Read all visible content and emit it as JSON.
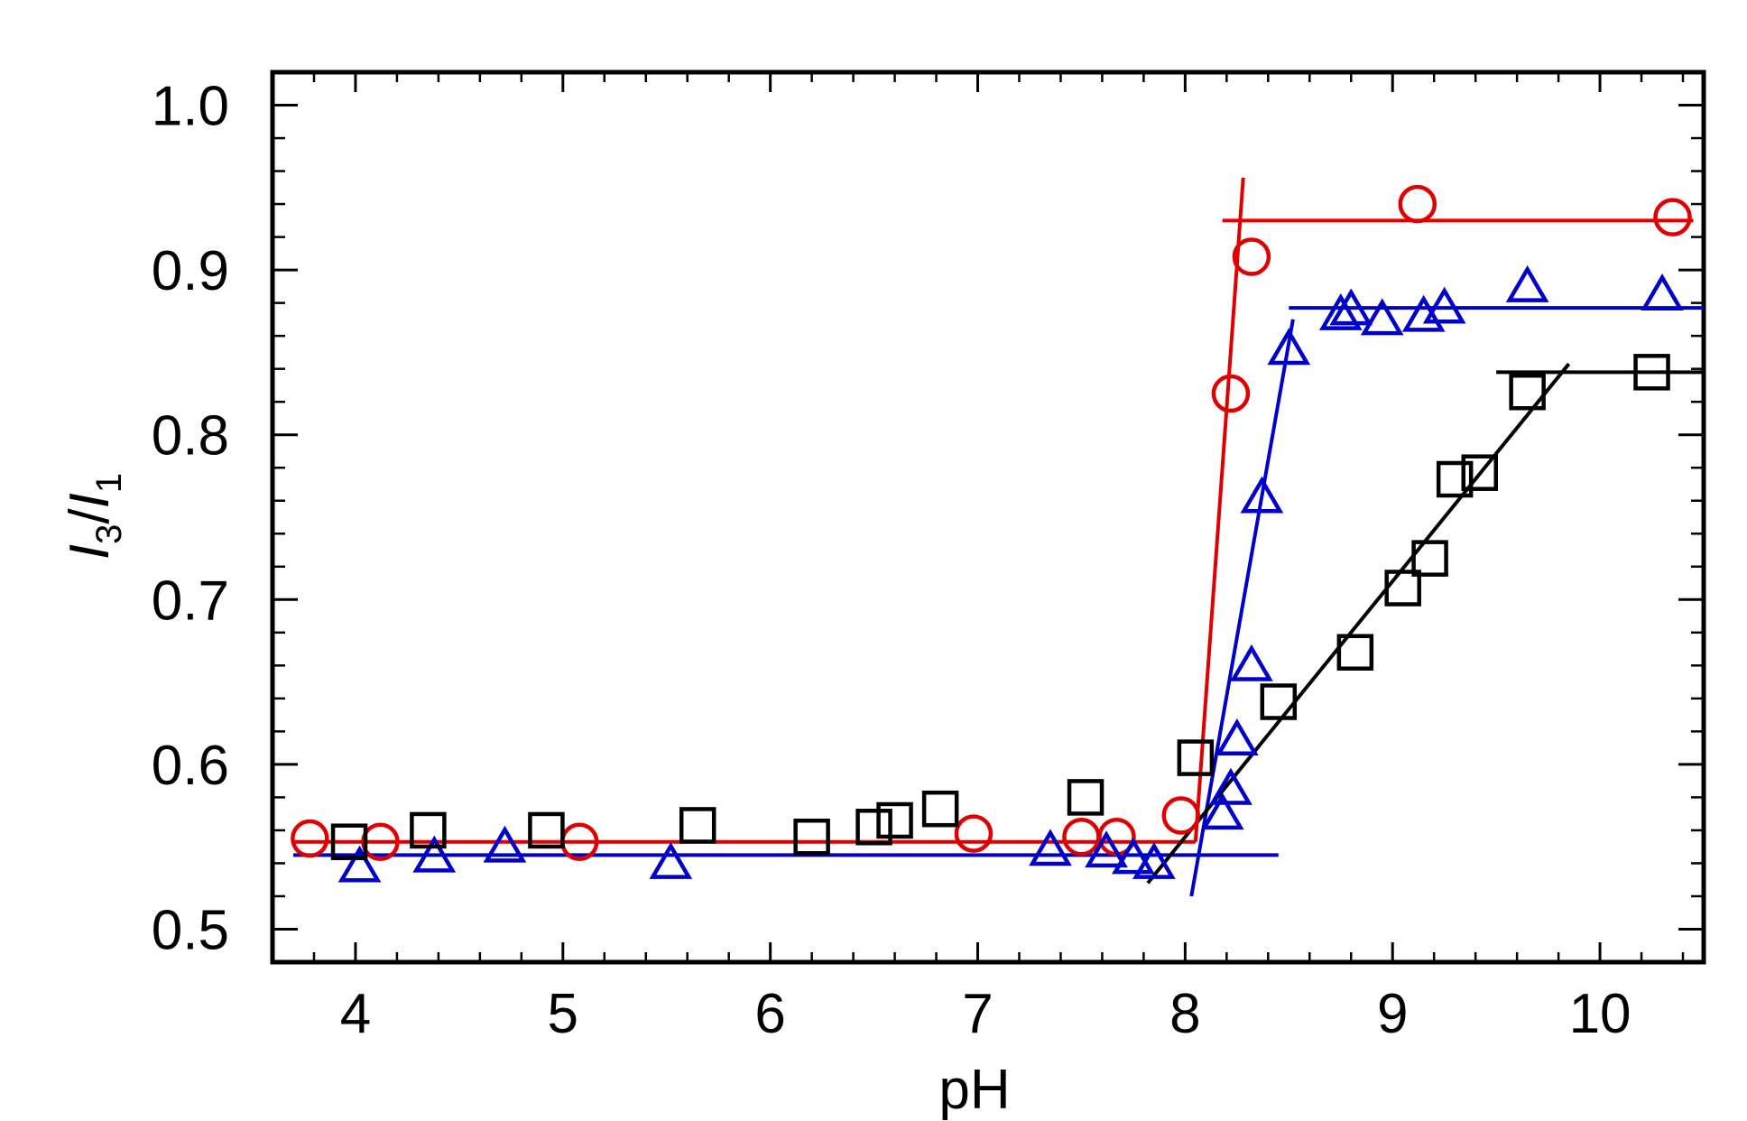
{
  "chart_data": {
    "type": "scatter",
    "title": "",
    "xlabel": "pH",
    "ylabel": {
      "part1": "I",
      "sub1": "3",
      "slash": "/",
      "part2": "I",
      "sub2": "1"
    },
    "xlim": [
      3.6,
      10.5
    ],
    "ylim": [
      0.48,
      1.02
    ],
    "xticks": [
      4,
      5,
      6,
      7,
      8,
      9,
      10
    ],
    "xtick_labels": [
      "4",
      "5",
      "6",
      "7",
      "8",
      "9",
      "10"
    ],
    "yticks": [
      0.5,
      0.6,
      0.7,
      0.8,
      0.9,
      1.0
    ],
    "ytick_labels": [
      "0.5",
      "0.6",
      "0.7",
      "0.8",
      "0.9",
      "1.0"
    ],
    "grid": false,
    "legend": "none",
    "series": [
      {
        "marker": "circle",
        "color": "#e00000",
        "points": [
          [
            3.78,
            0.555
          ],
          [
            4.12,
            0.553
          ],
          [
            5.08,
            0.553
          ],
          [
            6.98,
            0.558
          ],
          [
            7.5,
            0.556
          ],
          [
            7.67,
            0.556
          ],
          [
            7.98,
            0.569
          ],
          [
            8.22,
            0.825
          ],
          [
            8.32,
            0.908
          ],
          [
            9.12,
            0.94
          ],
          [
            10.35,
            0.932
          ]
        ],
        "fit_lines": [
          [
            [
              3.7,
              0.553
            ],
            [
              8.05,
              0.553
            ]
          ],
          [
            [
              8.05,
              0.553
            ],
            [
              8.28,
              0.956
            ]
          ],
          [
            [
              8.18,
              0.93
            ],
            [
              10.45,
              0.93
            ]
          ]
        ]
      },
      {
        "marker": "triangle",
        "color": "#0000cc",
        "points": [
          [
            4.02,
            0.538
          ],
          [
            4.38,
            0.544
          ],
          [
            4.72,
            0.55
          ],
          [
            5.52,
            0.54
          ],
          [
            7.35,
            0.548
          ],
          [
            7.62,
            0.547
          ],
          [
            7.75,
            0.543
          ],
          [
            7.85,
            0.54
          ],
          [
            8.18,
            0.57
          ],
          [
            8.22,
            0.585
          ],
          [
            8.25,
            0.615
          ],
          [
            8.32,
            0.66
          ],
          [
            8.37,
            0.762
          ],
          [
            8.5,
            0.852
          ],
          [
            8.75,
            0.873
          ],
          [
            8.8,
            0.876
          ],
          [
            8.95,
            0.87
          ],
          [
            9.15,
            0.872
          ],
          [
            9.25,
            0.877
          ],
          [
            9.65,
            0.89
          ],
          [
            10.3,
            0.885
          ]
        ],
        "fit_lines": [
          [
            [
              3.7,
              0.545
            ],
            [
              8.45,
              0.545
            ]
          ],
          [
            [
              8.03,
              0.52
            ],
            [
              8.52,
              0.87
            ]
          ],
          [
            [
              8.5,
              0.877
            ],
            [
              10.5,
              0.877
            ]
          ]
        ]
      },
      {
        "marker": "square",
        "color": "#000000",
        "points": [
          [
            3.97,
            0.553
          ],
          [
            4.35,
            0.56
          ],
          [
            4.92,
            0.56
          ],
          [
            5.65,
            0.563
          ],
          [
            6.2,
            0.556
          ],
          [
            6.5,
            0.562
          ],
          [
            6.6,
            0.566
          ],
          [
            6.82,
            0.573
          ],
          [
            7.52,
            0.58
          ],
          [
            8.05,
            0.604
          ],
          [
            8.45,
            0.638
          ],
          [
            8.82,
            0.668
          ],
          [
            9.05,
            0.707
          ],
          [
            9.18,
            0.725
          ],
          [
            9.3,
            0.773
          ],
          [
            9.42,
            0.777
          ],
          [
            9.65,
            0.826
          ],
          [
            10.25,
            0.838
          ]
        ],
        "fit_lines": [
          [
            [
              7.82,
              0.528
            ],
            [
              9.85,
              0.843
            ]
          ],
          [
            [
              9.5,
              0.838
            ],
            [
              10.5,
              0.838
            ]
          ]
        ]
      }
    ]
  }
}
